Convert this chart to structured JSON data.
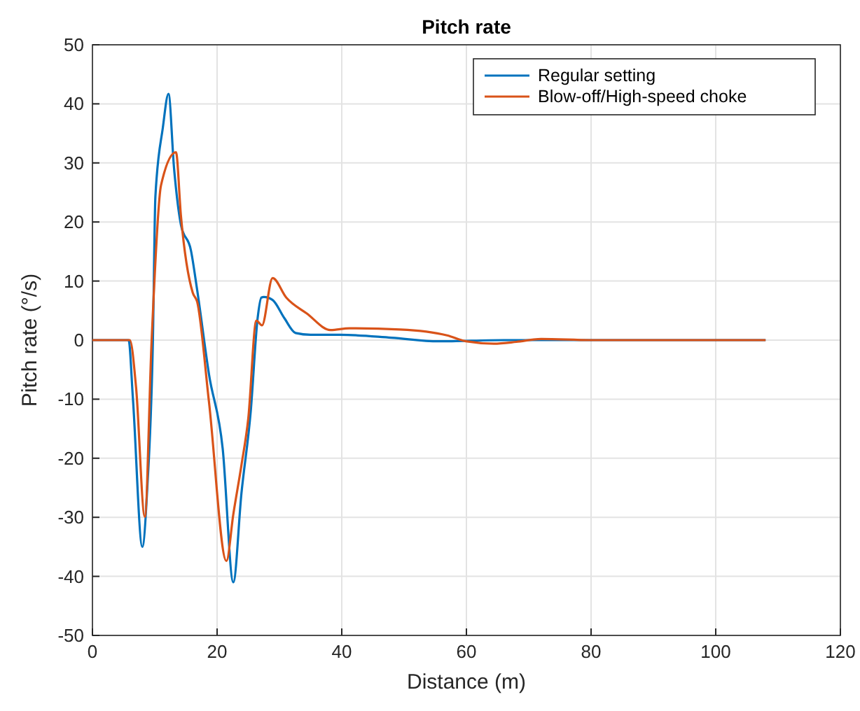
{
  "chart_data": {
    "type": "line",
    "title": "Pitch rate",
    "xlabel": "Distance (m)",
    "ylabel": "Pitch rate (°/s)",
    "xlim": [
      0,
      120
    ],
    "xticks": [
      0,
      20,
      40,
      60,
      80,
      100,
      120
    ],
    "ylim": [
      -50,
      50
    ],
    "yticks": [
      -50,
      -40,
      -30,
      -20,
      -10,
      0,
      10,
      20,
      30,
      40,
      50
    ],
    "grid": true,
    "legend": "top right",
    "marker": "none",
    "line_style": "solid",
    "series": [
      {
        "name": "Regular setting",
        "color": "#0072bd",
        "x": [
          0,
          5.8,
          6.5,
          8,
          8.8,
          9.7,
          10.1,
          11.3,
          12.2,
          13.1,
          14.2,
          15.8,
          16.8,
          18.7,
          20.9,
          22.6,
          23.9,
          25.4,
          26.5,
          27.1,
          27.5,
          28.9,
          30.8,
          32.6,
          35,
          39.7,
          48,
          55.5,
          66,
          80,
          95,
          108
        ],
        "values": [
          0,
          0,
          -10,
          -35,
          -25,
          0,
          24.3,
          36,
          41.7,
          29,
          19.5,
          15.2,
          8.5,
          -5.8,
          -18.4,
          -41,
          -26,
          -12,
          3.7,
          7.2,
          7.3,
          6.8,
          3.7,
          1.2,
          0.9,
          0.9,
          0.4,
          -0.2,
          0,
          0,
          0,
          0
        ]
      },
      {
        "name": "Blow-off/High-speed choke",
        "color": "#d95319",
        "x": [
          0,
          6,
          7,
          8.4,
          9.5,
          11,
          13.4,
          14.2,
          16.1,
          16.8,
          18.7,
          21.5,
          22.6,
          23.9,
          25,
          26.3,
          27.2,
          28.9,
          31.1,
          34.4,
          38.2,
          41.2,
          49.4,
          56.9,
          59.9,
          64.4,
          68,
          72,
          80,
          90,
          108
        ],
        "values": [
          0,
          0,
          -8,
          -29.9,
          0,
          26.2,
          31.8,
          21,
          8,
          6.5,
          -10.5,
          -37.4,
          -29.5,
          -21.2,
          -13.3,
          3.3,
          2.5,
          10.5,
          7.2,
          4.5,
          1.7,
          2,
          1.8,
          0.8,
          -0.2,
          -0.6,
          -0.3,
          0.2,
          0,
          0,
          0
        ]
      }
    ]
  }
}
